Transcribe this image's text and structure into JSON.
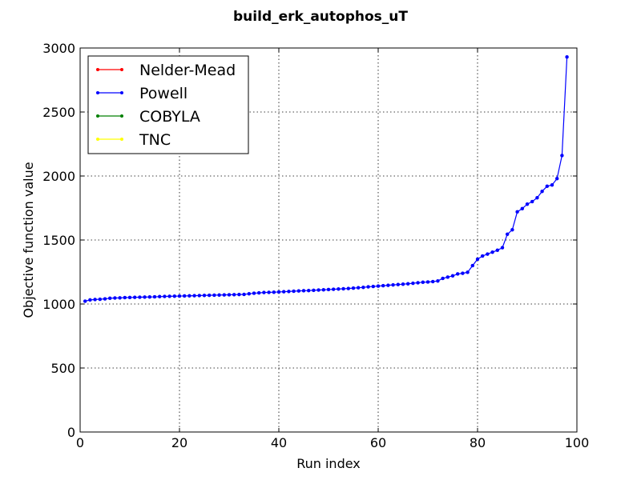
{
  "chart_data": {
    "type": "line",
    "title": "build_erk_autophos_uT",
    "xlabel": "Run index",
    "ylabel": "Objective function value",
    "xlim": [
      0,
      100
    ],
    "ylim": [
      0,
      3000
    ],
    "x_ticks": [
      0,
      20,
      40,
      60,
      80,
      100
    ],
    "y_ticks": [
      0,
      500,
      1000,
      1500,
      2000,
      2500,
      3000
    ],
    "grid": true,
    "legend_position": "top-left",
    "series": [
      {
        "name": "Nelder-Mead",
        "color": "#ff0000",
        "x": [],
        "values": []
      },
      {
        "name": "Powell",
        "color": "#0000ff",
        "x": [
          1,
          2,
          3,
          4,
          5,
          6,
          7,
          8,
          9,
          10,
          11,
          12,
          13,
          14,
          15,
          16,
          17,
          18,
          19,
          20,
          21,
          22,
          23,
          24,
          25,
          26,
          27,
          28,
          29,
          30,
          31,
          32,
          33,
          34,
          35,
          36,
          37,
          38,
          39,
          40,
          41,
          42,
          43,
          44,
          45,
          46,
          47,
          48,
          49,
          50,
          51,
          52,
          53,
          54,
          55,
          56,
          57,
          58,
          59,
          60,
          61,
          62,
          63,
          64,
          65,
          66,
          67,
          68,
          69,
          70,
          71,
          72,
          73,
          74,
          75,
          76,
          77,
          78,
          79,
          80,
          81,
          82,
          83,
          84,
          85,
          86,
          87,
          88,
          89,
          90,
          91,
          92,
          93,
          94,
          95,
          96,
          97,
          98
        ],
        "values": [
          1022,
          1032,
          1035,
          1037,
          1040,
          1045,
          1047,
          1048,
          1050,
          1051,
          1052,
          1053,
          1054,
          1055,
          1056,
          1058,
          1059,
          1060,
          1061,
          1062,
          1063,
          1064,
          1065,
          1066,
          1067,
          1068,
          1069,
          1070,
          1071,
          1072,
          1073,
          1074,
          1075,
          1080,
          1084,
          1087,
          1090,
          1091,
          1092,
          1094,
          1096,
          1098,
          1100,
          1102,
          1104,
          1105,
          1107,
          1109,
          1111,
          1113,
          1115,
          1117,
          1119,
          1121,
          1124,
          1127,
          1130,
          1134,
          1137,
          1140,
          1143,
          1146,
          1149,
          1152,
          1155,
          1158,
          1162,
          1166,
          1170,
          1172,
          1175,
          1180,
          1200,
          1210,
          1220,
          1235,
          1240,
          1248,
          1300,
          1350,
          1375,
          1390,
          1405,
          1420,
          1440,
          1545,
          1580,
          1720,
          1745,
          1780,
          1800,
          1830,
          1880,
          1920,
          1930,
          1980,
          2160,
          2930
        ]
      },
      {
        "name": "COBYLA",
        "color": "#008000",
        "x": [],
        "values": []
      },
      {
        "name": "TNC",
        "color": "#ffff00",
        "x": [],
        "values": []
      }
    ]
  }
}
